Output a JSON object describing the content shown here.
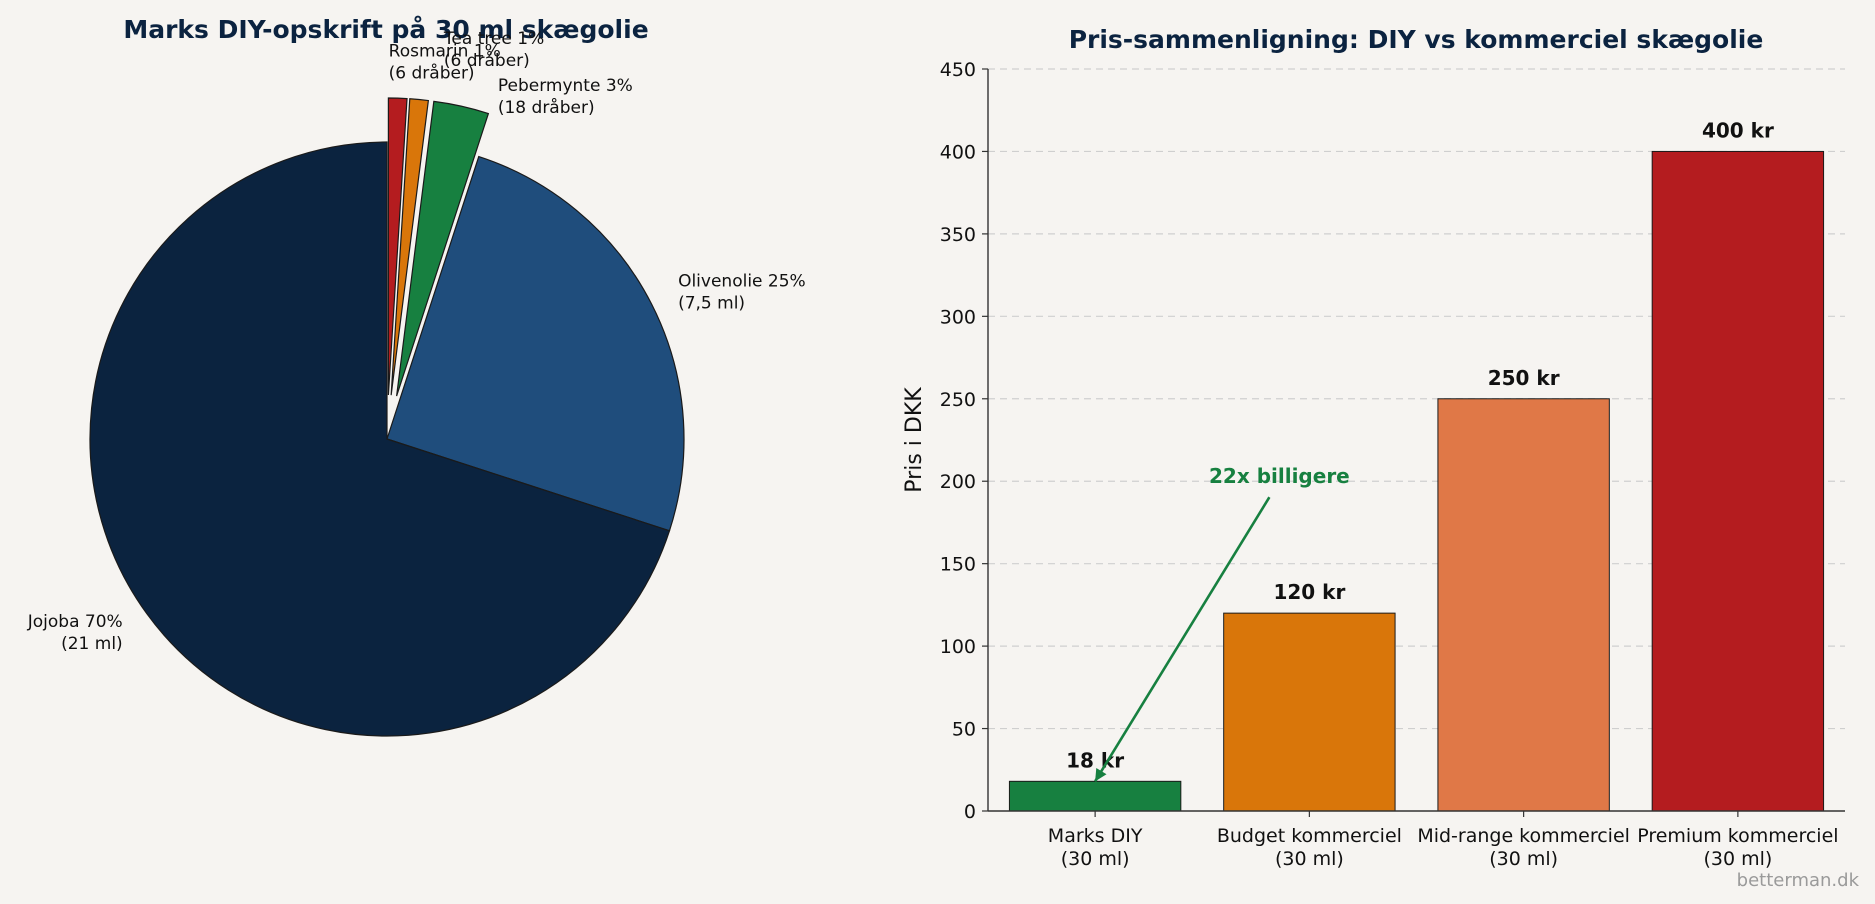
{
  "watermark": "betterman.dk",
  "chart_data": [
    {
      "type": "pie",
      "title": "Marks DIY-opskrift på 30 ml skægolie",
      "start_angle_deg": 90,
      "direction": "clockwise",
      "slices": [
        {
          "label": "Rosmarin 1%",
          "sublabel": "(6 dråber)",
          "value": 1,
          "color": "#b41c1f",
          "exploded": true
        },
        {
          "label": "Tea tree 1%",
          "sublabel": "(6 dråber)",
          "value": 1,
          "color": "#d9760a",
          "exploded": true
        },
        {
          "label": "Pebermynte 3%",
          "sublabel": "(18 dråber)",
          "value": 3,
          "color": "#178040",
          "exploded": true
        },
        {
          "label": "Olivenolie 25%",
          "sublabel": "(7,5 ml)",
          "value": 25,
          "color": "#1f4d7c",
          "exploded": false
        },
        {
          "label": "Jojoba 70%",
          "sublabel": "(21 ml)",
          "value": 70,
          "color": "#0b233f",
          "exploded": false
        }
      ]
    },
    {
      "type": "bar",
      "title": "Pris-sammenligning: DIY vs kommerciel skægolie",
      "ylabel": "Pris i DKK",
      "xlabel": "",
      "ylim": [
        0,
        450
      ],
      "yticks": [
        0,
        50,
        100,
        150,
        200,
        250,
        300,
        350,
        400,
        450
      ],
      "grid": "y-dashed",
      "categories": [
        {
          "line1": "Marks DIY",
          "line2": "(30 ml)"
        },
        {
          "line1": "Budget kommerciel",
          "line2": "(30 ml)"
        },
        {
          "line1": "Mid-range kommerciel",
          "line2": "(30 ml)"
        },
        {
          "line1": "Premium kommerciel",
          "line2": "(30 ml)"
        }
      ],
      "values": [
        18,
        120,
        250,
        400
      ],
      "value_labels": [
        "18 kr",
        "120 kr",
        "250 kr",
        "400 kr"
      ],
      "colors": [
        "#178040",
        "#d9760a",
        "#e07847",
        "#b41c1f"
      ],
      "annotation": {
        "text": "22x billigere",
        "color": "#178040",
        "points_to": {
          "category": 0,
          "value": 18
        },
        "text_value": 200
      }
    }
  ]
}
